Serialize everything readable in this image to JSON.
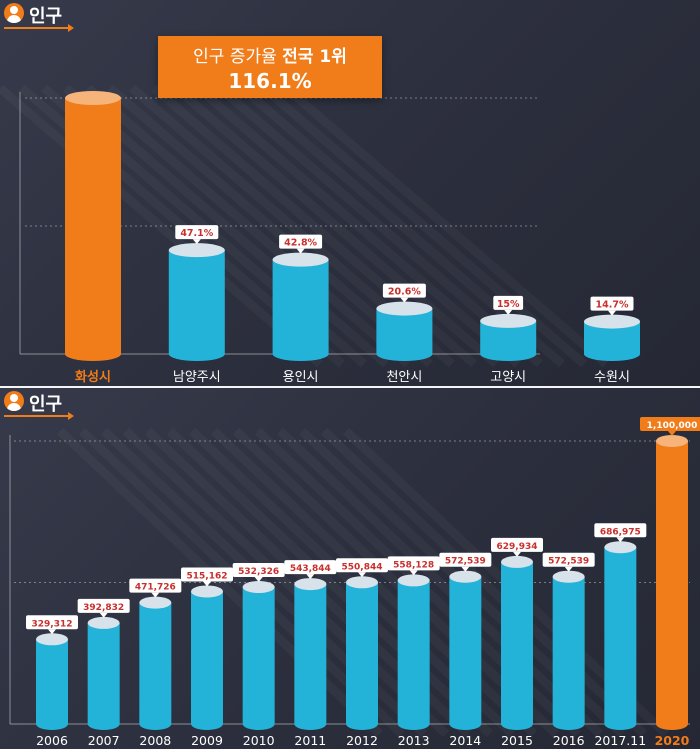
{
  "top": {
    "header_title": "인구",
    "callout": {
      "line1_prefix": "인구 증가율",
      "line1_strong": "전국 1위",
      "line2": "116.1%"
    },
    "colors": {
      "bar": "#23b3d9",
      "highlight": "#f07c1a",
      "cap": "#d7e2ea"
    }
  },
  "bottom": {
    "header_title": "인구",
    "colors": {
      "bar": "#23b3d9",
      "highlight": "#f07c1a",
      "cap": "#d7e2ea"
    }
  },
  "chart_data": [
    {
      "type": "bar",
      "title": "인구 증가율 전국 1위",
      "categories": [
        "화성시",
        "남양주시",
        "용인시",
        "천안시",
        "고양시",
        "수원시"
      ],
      "values": [
        116.1,
        47.1,
        42.8,
        20.6,
        15,
        14.7
      ],
      "labels": [
        null,
        "47.1%",
        "42.8%",
        "20.6%",
        "15%",
        "14.7%"
      ],
      "highlight_index": 0,
      "ylim": [
        0,
        116.1
      ],
      "grid": true
    },
    {
      "type": "bar",
      "categories": [
        "2006",
        "2007",
        "2008",
        "2009",
        "2010",
        "2011",
        "2012",
        "2013",
        "2014",
        "2015",
        "2016",
        "2017.11",
        "2020"
      ],
      "values": [
        329312,
        392832,
        471726,
        515162,
        532326,
        543844,
        550844,
        558128,
        572539,
        629934,
        572539,
        686975,
        1100000
      ],
      "labels": [
        "329,312",
        "392,832",
        "471,726",
        "515,162",
        "532,326",
        "543,844",
        "550,844",
        "558,128",
        "572,539",
        "629,934",
        "572,539",
        "686,975",
        "1,100,000"
      ],
      "highlight_index": 12,
      "ylim": [
        0,
        1100000
      ],
      "grid": true
    }
  ]
}
